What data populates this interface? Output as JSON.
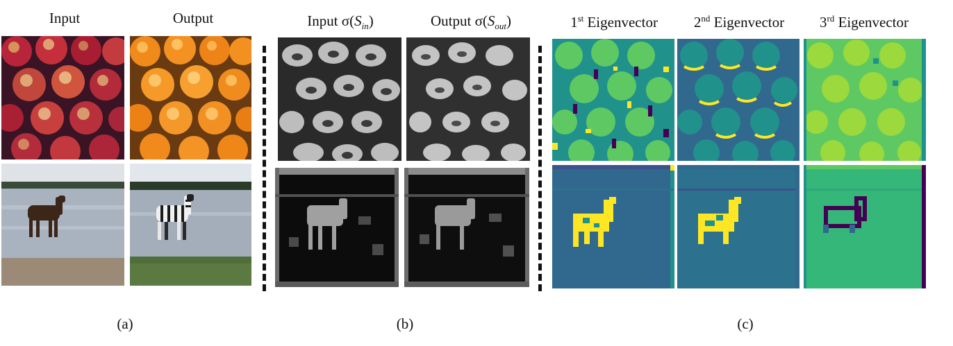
{
  "panel_a": {
    "col_input": "Input",
    "col_output": "Output",
    "caption": "(a)"
  },
  "panel_b": {
    "col_input_prefix": "Input σ(",
    "col_input_S": "S",
    "col_input_sub": "in",
    "col_output_prefix": "Output σ(",
    "col_output_S": "S",
    "col_output_sub": "out",
    "close_paren": ")",
    "caption": "(b)"
  },
  "panel_c": {
    "eig1_num": "1",
    "eig1_sup": "st",
    "eig2_num": "2",
    "eig2_sup": "nd",
    "eig3_num": "3",
    "eig3_sup": "rd",
    "eig_word": "Eigenvector",
    "caption": "(c)"
  },
  "colors": {
    "viridis_dark": "#440154",
    "viridis_blue": "#31688e",
    "viridis_teal": "#21918c",
    "viridis_green": "#5ec962",
    "viridis_yellow": "#fde725"
  }
}
